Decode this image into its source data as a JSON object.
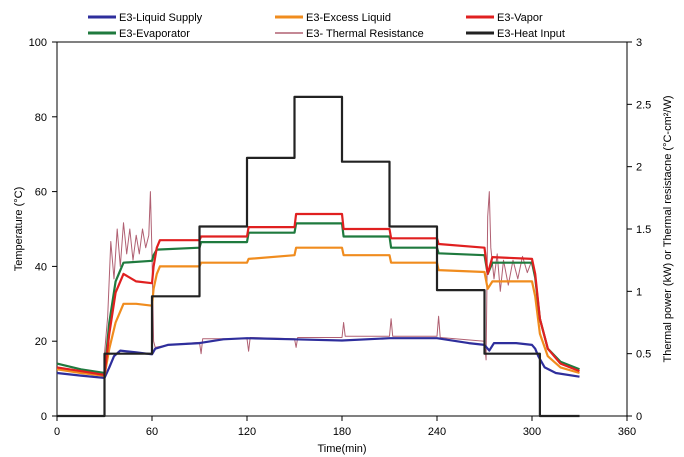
{
  "chart_data": {
    "type": "line",
    "title": "",
    "xlabel": "Time(min)",
    "ylabel_left": "Temperature (°C)",
    "ylabel_right": "Thermal power (kW) or Thermal resistacne (°C-cm²/W)",
    "xlim": [
      0,
      360
    ],
    "ylim_left": [
      0,
      100
    ],
    "ylim_right": [
      0,
      3
    ],
    "x_ticks": [
      "0",
      "60",
      "120",
      "180",
      "240",
      "300",
      "360"
    ],
    "y_left_ticks": [
      "0",
      "20",
      "40",
      "60",
      "80",
      "100"
    ],
    "y_right_ticks": [
      "0",
      "0.5",
      "1",
      "1.5",
      "2",
      "2.5",
      "3"
    ],
    "grid": false,
    "legend_position": "top",
    "series": [
      {
        "name": "E3-Liquid Supply",
        "axis": "left",
        "color": "#2e2e9c",
        "points": [
          [
            0,
            11.5
          ],
          [
            15,
            10.8
          ],
          [
            30,
            10.2
          ],
          [
            33,
            13
          ],
          [
            36,
            16
          ],
          [
            40,
            17.5
          ],
          [
            50,
            17
          ],
          [
            60,
            16.5
          ],
          [
            62,
            18
          ],
          [
            70,
            19
          ],
          [
            90,
            19.5
          ],
          [
            105,
            20.5
          ],
          [
            120,
            20.8
          ],
          [
            150,
            20.5
          ],
          [
            180,
            20.2
          ],
          [
            210,
            20.8
          ],
          [
            240,
            20.8
          ],
          [
            260,
            19.5
          ],
          [
            270,
            19
          ],
          [
            273,
            17.5
          ],
          [
            276,
            19.5
          ],
          [
            290,
            19.5
          ],
          [
            300,
            19
          ],
          [
            302,
            18
          ],
          [
            304,
            16
          ],
          [
            308,
            13
          ],
          [
            315,
            11.5
          ],
          [
            330,
            10.5
          ]
        ]
      },
      {
        "name": "E3-Excess Liquid",
        "axis": "left",
        "color": "#f08c1e",
        "points": [
          [
            0,
            12.5
          ],
          [
            15,
            11.5
          ],
          [
            30,
            10.8
          ],
          [
            33,
            18
          ],
          [
            37,
            25
          ],
          [
            42,
            30
          ],
          [
            50,
            30
          ],
          [
            60,
            29.5
          ],
          [
            61,
            34
          ],
          [
            63,
            38
          ],
          [
            65,
            40
          ],
          [
            90,
            40
          ],
          [
            91,
            41
          ],
          [
            120,
            41
          ],
          [
            121,
            42
          ],
          [
            150,
            43
          ],
          [
            151,
            45
          ],
          [
            180,
            45
          ],
          [
            181,
            43
          ],
          [
            210,
            43
          ],
          [
            211,
            41
          ],
          [
            240,
            41
          ],
          [
            241,
            39
          ],
          [
            270,
            38.5
          ],
          [
            272,
            34
          ],
          [
            275,
            36
          ],
          [
            300,
            36
          ],
          [
            302,
            32
          ],
          [
            305,
            22
          ],
          [
            310,
            16
          ],
          [
            318,
            13
          ],
          [
            330,
            11.5
          ]
        ]
      },
      {
        "name": "E3-Vapor",
        "axis": "left",
        "color": "#e02020",
        "points": [
          [
            0,
            13
          ],
          [
            15,
            12
          ],
          [
            30,
            11
          ],
          [
            33,
            22
          ],
          [
            37,
            33
          ],
          [
            42,
            38
          ],
          [
            50,
            36
          ],
          [
            60,
            35.5
          ],
          [
            61,
            40
          ],
          [
            63,
            45
          ],
          [
            65,
            47
          ],
          [
            90,
            47
          ],
          [
            91,
            48
          ],
          [
            120,
            48
          ],
          [
            121,
            50.5
          ],
          [
            150,
            50.5
          ],
          [
            151,
            54
          ],
          [
            180,
            54
          ],
          [
            181,
            50
          ],
          [
            210,
            50
          ],
          [
            211,
            47.5
          ],
          [
            240,
            47.5
          ],
          [
            241,
            46
          ],
          [
            270,
            45
          ],
          [
            272,
            38
          ],
          [
            275,
            42.5
          ],
          [
            300,
            42
          ],
          [
            302,
            38
          ],
          [
            305,
            26
          ],
          [
            310,
            18
          ],
          [
            318,
            14
          ],
          [
            330,
            12
          ]
        ]
      },
      {
        "name": "E3-Evaporator",
        "axis": "left",
        "color": "#1f7a3e",
        "points": [
          [
            0,
            14
          ],
          [
            15,
            12.5
          ],
          [
            30,
            11.5
          ],
          [
            33,
            25
          ],
          [
            37,
            36
          ],
          [
            42,
            41
          ],
          [
            60,
            41.5
          ],
          [
            61,
            43
          ],
          [
            63,
            44.5
          ],
          [
            90,
            45
          ],
          [
            91,
            46.5
          ],
          [
            120,
            46.5
          ],
          [
            121,
            49
          ],
          [
            150,
            49
          ],
          [
            151,
            51.5
          ],
          [
            180,
            51.5
          ],
          [
            181,
            48
          ],
          [
            210,
            48
          ],
          [
            211,
            45
          ],
          [
            240,
            45
          ],
          [
            241,
            43.5
          ],
          [
            270,
            43
          ],
          [
            272,
            38
          ],
          [
            275,
            41
          ],
          [
            300,
            41
          ],
          [
            302,
            37
          ],
          [
            305,
            26
          ],
          [
            310,
            18
          ],
          [
            318,
            14.5
          ],
          [
            330,
            12.5
          ]
        ]
      },
      {
        "name": "E3- Thermal Resistance",
        "axis": "right",
        "color": "#b06072",
        "points": [
          [
            30,
            0.5
          ],
          [
            32,
            0.8
          ],
          [
            34,
            1.4
          ],
          [
            36,
            1.1
          ],
          [
            38,
            1.5
          ],
          [
            40,
            1.2
          ],
          [
            42,
            1.55
          ],
          [
            44,
            1.3
          ],
          [
            46,
            1.5
          ],
          [
            48,
            1.25
          ],
          [
            50,
            1.45
          ],
          [
            52,
            1.3
          ],
          [
            54,
            1.5
          ],
          [
            56,
            1.35
          ],
          [
            58,
            1.45
          ],
          [
            59,
            1.8
          ],
          [
            60,
            1.3
          ],
          [
            61,
            0.6
          ],
          [
            62,
            0.55
          ],
          [
            70,
            0.57
          ],
          [
            90,
            0.59
          ],
          [
            91,
            0.5
          ],
          [
            92,
            0.62
          ],
          [
            120,
            0.62
          ],
          [
            121,
            0.52
          ],
          [
            122,
            0.63
          ],
          [
            150,
            0.62
          ],
          [
            151,
            0.55
          ],
          [
            152,
            0.63
          ],
          [
            180,
            0.63
          ],
          [
            181,
            0.75
          ],
          [
            182,
            0.64
          ],
          [
            210,
            0.64
          ],
          [
            211,
            0.78
          ],
          [
            212,
            0.64
          ],
          [
            240,
            0.64
          ],
          [
            241,
            0.8
          ],
          [
            242,
            0.63
          ],
          [
            270,
            0.6
          ],
          [
            271,
            0.45
          ],
          [
            272,
            1.6
          ],
          [
            273,
            1.8
          ],
          [
            274,
            1.35
          ],
          [
            276,
            1.1
          ],
          [
            278,
            1.3
          ],
          [
            280,
            1.0
          ],
          [
            282,
            1.25
          ],
          [
            285,
            1.05
          ],
          [
            288,
            1.25
          ],
          [
            291,
            1.1
          ],
          [
            294,
            1.28
          ],
          [
            297,
            1.15
          ],
          [
            300,
            1.25
          ],
          [
            302,
            1.1
          ]
        ]
      },
      {
        "name": "E3-Heat Input",
        "axis": "right",
        "color": "#222222",
        "points": [
          [
            0,
            0
          ],
          [
            30,
            0
          ],
          [
            30,
            0.5
          ],
          [
            60,
            0.5
          ],
          [
            60,
            0.96
          ],
          [
            90,
            0.96
          ],
          [
            90,
            1.52
          ],
          [
            120,
            1.52
          ],
          [
            120,
            2.07
          ],
          [
            150,
            2.07
          ],
          [
            150,
            2.56
          ],
          [
            180,
            2.56
          ],
          [
            180,
            2.04
          ],
          [
            210,
            2.04
          ],
          [
            210,
            1.52
          ],
          [
            240,
            1.52
          ],
          [
            240,
            1.01
          ],
          [
            270,
            1.01
          ],
          [
            270,
            0.5
          ],
          [
            305,
            0.5
          ],
          [
            305,
            0
          ],
          [
            330,
            0
          ]
        ]
      }
    ]
  }
}
